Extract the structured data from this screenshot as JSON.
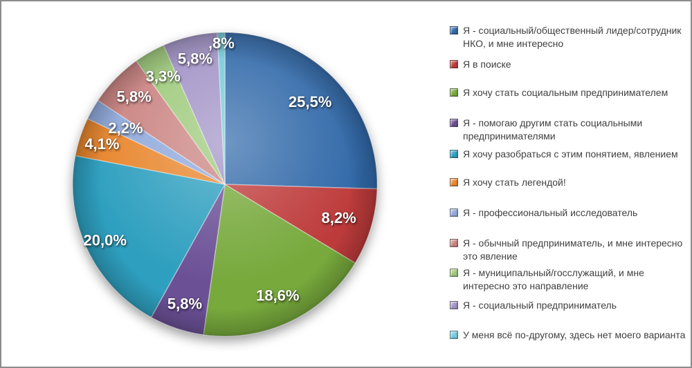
{
  "frame": {
    "background": "#ffffff",
    "border_color": "#8c8c8c"
  },
  "chart_data": {
    "type": "pie",
    "title": "",
    "legend_position": "right",
    "direction": "clockwise",
    "start_angle_deg": 0,
    "label_color": "#ffffff",
    "legend_text_color": "#3f3f3f",
    "categories": [
      "Я - социальный/общественный лидер/сотрудник НКО, и мне интересно",
      "Я в поиске",
      "Я хочу стать социальным предпринимателем",
      "Я - помогаю другим стать социальными предпринимателями",
      "Я хочу разобраться с этим понятием, явлением",
      "Я хочу стать легендой!",
      "Я - профессиональный исследователь",
      "Я - обычный предприниматель, и мне интересно это явление",
      "Я - муниципальный/госслужащий, и мне интересно это направление",
      "Я - социальный предприниматель",
      "У меня всё по-другому, здесь нет моего варианта"
    ],
    "values": [
      25.5,
      8.2,
      18.6,
      5.8,
      20.0,
      4.1,
      2.2,
      5.8,
      3.3,
      5.8,
      0.8
    ],
    "slice_labels": [
      "25,5%",
      "8,2%",
      "18,6%",
      "5,8%",
      "20,0%",
      "4,1%",
      "2,2%",
      "5,8%",
      "3,3%",
      "5,8%",
      ",8%"
    ],
    "colors": [
      "#3169A9",
      "#BE3B3B",
      "#77A93C",
      "#6B5096",
      "#2E9FBF",
      "#E8862D",
      "#8FA9DB",
      "#CA8381",
      "#9DC97A",
      "#A192C6",
      "#74CBD9"
    ]
  }
}
